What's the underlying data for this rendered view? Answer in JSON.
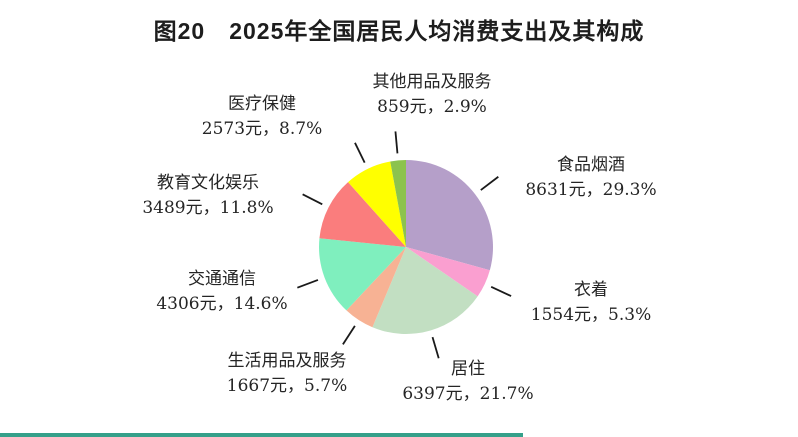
{
  "page": {
    "title": "图20　2025年全国居民人均消费支出及其构成",
    "bottom_strip_color": "#35a08a"
  },
  "chart_data": {
    "type": "pie",
    "title": "图20　2025年全国居民人均消费支出及其构成",
    "unit": "元",
    "start_angle_deg": 0,
    "direction": "clockwise",
    "legend_position": "none",
    "leader_line_color": "#1a1a1a",
    "slices": [
      {
        "label": "食品烟酒",
        "value": 8631,
        "pct": 29.3,
        "value_label": "8631元，29.3%",
        "color": "#b59fc9"
      },
      {
        "label": "衣着",
        "value": 1554,
        "pct": 5.3,
        "value_label": "1554元，5.3%",
        "color": "#fa9fd0"
      },
      {
        "label": "居住",
        "value": 6397,
        "pct": 21.7,
        "value_label": "6397元，21.7%",
        "color": "#c2dfc2"
      },
      {
        "label": "生活用品及服务",
        "value": 1667,
        "pct": 5.7,
        "value_label": "1667元，5.7%",
        "color": "#f7b294"
      },
      {
        "label": "交通通信",
        "value": 4306,
        "pct": 14.6,
        "value_label": "4306元，14.6%",
        "color": "#7fefbe"
      },
      {
        "label": "教育文化娱乐",
        "value": 3489,
        "pct": 11.8,
        "value_label": "3489元，11.8%",
        "color": "#fa7d7d"
      },
      {
        "label": "医疗保健",
        "value": 2573,
        "pct": 8.7,
        "value_label": "2573元，8.7%",
        "color": "#ffff00"
      },
      {
        "label": "其他用品及服务",
        "value": 859,
        "pct": 2.9,
        "value_label": "859元，2.9%",
        "color": "#8cc34e"
      }
    ]
  }
}
